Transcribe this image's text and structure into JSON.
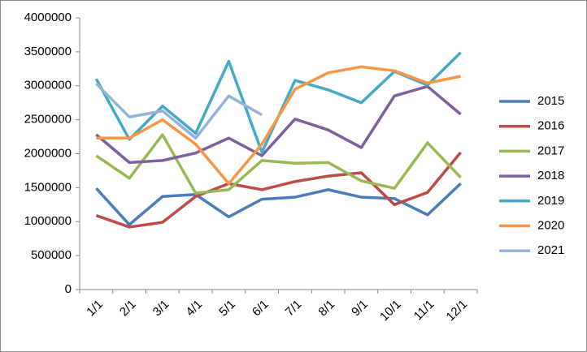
{
  "chart_data": {
    "type": "line",
    "categories": [
      "1/1",
      "2/1",
      "3/1",
      "4/1",
      "5/1",
      "6/1",
      "7/1",
      "8/1",
      "9/1",
      "10/1",
      "11/1",
      "12/1"
    ],
    "series": [
      {
        "name": "2015",
        "color": "#4a7ebb",
        "values": [
          1490000,
          955000,
          1370000,
          1400000,
          1070000,
          1330000,
          1360000,
          1470000,
          1360000,
          1340000,
          1100000,
          1560000
        ]
      },
      {
        "name": "2016",
        "color": "#be4b48",
        "values": [
          1090000,
          920000,
          990000,
          1370000,
          1560000,
          1470000,
          1590000,
          1670000,
          1720000,
          1250000,
          1430000,
          2020000
        ]
      },
      {
        "name": "2017",
        "color": "#98b954",
        "values": [
          1970000,
          1640000,
          2280000,
          1420000,
          1470000,
          1900000,
          1860000,
          1870000,
          1600000,
          1490000,
          2160000,
          1650000
        ]
      },
      {
        "name": "2018",
        "color": "#7d60a0",
        "values": [
          2280000,
          1870000,
          1900000,
          2010000,
          2230000,
          1970000,
          2510000,
          2350000,
          2090000,
          2850000,
          2990000,
          2580000
        ]
      },
      {
        "name": "2019",
        "color": "#46aac5",
        "values": [
          3100000,
          2210000,
          2700000,
          2300000,
          3360000,
          2020000,
          3080000,
          2940000,
          2750000,
          3210000,
          3010000,
          3490000
        ]
      },
      {
        "name": "2020",
        "color": "#f79646",
        "values": [
          2230000,
          2230000,
          2500000,
          2140000,
          1560000,
          2140000,
          2950000,
          3190000,
          3280000,
          3220000,
          3040000,
          3140000
        ]
      },
      {
        "name": "2021",
        "color": "#95b3d7",
        "values": [
          3030000,
          2540000,
          2630000,
          2230000,
          2850000,
          2570000,
          null,
          null,
          null,
          null,
          null,
          null
        ]
      }
    ],
    "ylim": [
      0,
      4000000
    ],
    "yticks": [
      0,
      500000,
      1000000,
      1500000,
      2000000,
      2500000,
      3000000,
      3500000,
      4000000
    ],
    "grid": false,
    "legend": "right"
  }
}
